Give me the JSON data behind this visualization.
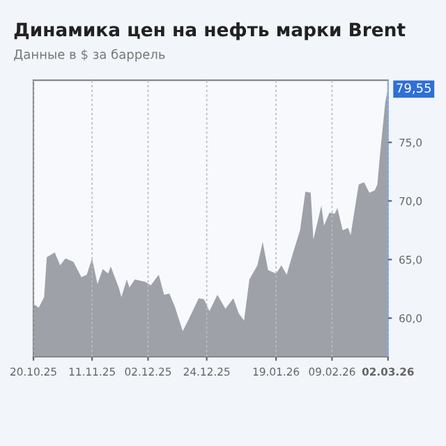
{
  "chart_data": {
    "type": "area",
    "title": "Динамика цен на нефть марки Brent",
    "subtitle": "Данные в $ за баррель",
    "x": [
      "2025-10-20",
      "2025-10-22",
      "2025-10-24",
      "2025-10-25",
      "2025-10-28",
      "2025-10-30",
      "2025-11-01",
      "2025-11-04",
      "2025-11-07",
      "2025-11-09",
      "2025-11-11",
      "2025-11-13",
      "2025-11-15",
      "2025-11-17",
      "2025-11-18",
      "2025-11-21",
      "2025-11-22",
      "2025-11-24",
      "2025-11-25",
      "2025-11-27",
      "2025-12-01",
      "2025-12-03",
      "2025-12-06",
      "2025-12-08",
      "2025-12-10",
      "2025-12-12",
      "2025-12-15",
      "2025-12-17",
      "2025-12-21",
      "2025-12-23",
      "2025-12-25",
      "2025-12-28",
      "2025-12-31",
      "2026-01-03",
      "2026-01-05",
      "2026-01-07",
      "2026-01-09",
      "2026-01-12",
      "2026-01-14",
      "2026-01-16",
      "2026-01-19",
      "2026-01-21",
      "2026-01-23",
      "2026-01-25",
      "2026-01-28",
      "2026-01-30",
      "2026-02-01",
      "2026-02-02",
      "2026-02-05",
      "2026-02-06",
      "2026-02-08",
      "2026-02-10",
      "2026-02-11",
      "2026-02-13",
      "2026-02-15",
      "2026-02-16",
      "2026-02-18",
      "2026-02-19",
      "2026-02-21",
      "2026-02-23",
      "2026-02-25",
      "2026-02-26",
      "2026-02-27",
      "2026-03-01",
      "2026-03-02"
    ],
    "series": [
      {
        "color": "#9ea1a8",
        "values": [
          61.2,
          60.9,
          61.8,
          65.2,
          65.6,
          64.5,
          65.1,
          64.8,
          63.5,
          63.7,
          65.1,
          62.9,
          64.2,
          63.8,
          64.4,
          62.6,
          61.8,
          63.3,
          62.6,
          63.3,
          63.1,
          62.8,
          63.7,
          62.0,
          62.1,
          61.0,
          58.9,
          59.8,
          61.7,
          61.6,
          60.6,
          62.0,
          60.8,
          61.7,
          60.4,
          59.8,
          63.3,
          64.5,
          66.5,
          64.1,
          63.8,
          64.5,
          63.7,
          65.3,
          67.5,
          70.8,
          70.7,
          66.7,
          69.6,
          67.9,
          69.0,
          68.9,
          69.4,
          67.5,
          67.7,
          67.1,
          70.0,
          71.4,
          71.6,
          70.7,
          70.9,
          71.4,
          74.0,
          78.5,
          79.55
        ]
      }
    ],
    "xlim": [
      "2025-10-20",
      "2026-03-02"
    ],
    "xticks": [
      {
        "value": "2025-10-20",
        "label": "20.10.25"
      },
      {
        "value": "2025-11-11",
        "label": "11.11.25"
      },
      {
        "value": "2025-12-02",
        "label": "02.12.25"
      },
      {
        "value": "2025-12-24",
        "label": "24.12.25"
      },
      {
        "value": "2026-01-19",
        "label": "19.01.26"
      },
      {
        "value": "2026-02-09",
        "label": "09.02.26"
      },
      {
        "value": "2026-03-02",
        "label": "02.03.26"
      }
    ],
    "ylim": [
      56.7,
      80.3
    ],
    "yticks": [
      {
        "value": 60,
        "label": "60,0"
      },
      {
        "value": 65,
        "label": "65,0"
      },
      {
        "value": 70,
        "label": "70,0"
      },
      {
        "value": 75,
        "label": "75,0"
      }
    ],
    "grid": "x",
    "annotations": [
      {
        "text": "79,55",
        "x": "2026-03-02",
        "y": 79.55
      }
    ]
  }
}
